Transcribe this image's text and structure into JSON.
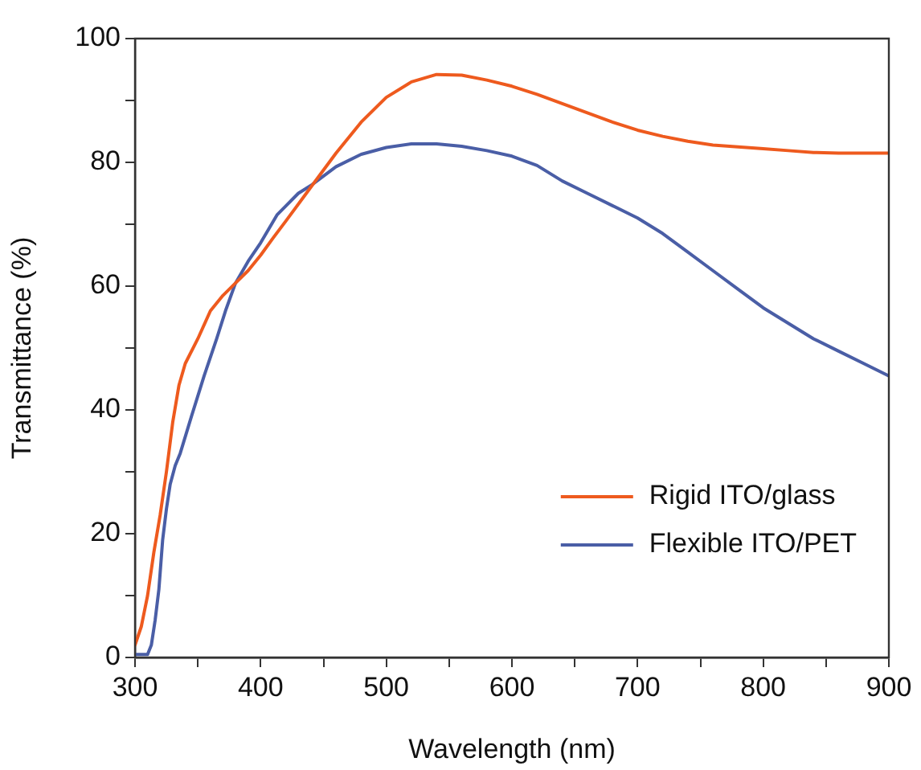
{
  "chart_data": {
    "type": "line",
    "xlabel": "Wavelength (nm)",
    "ylabel": "Transmittance (%)",
    "xlim": [
      300,
      900
    ],
    "ylim": [
      0,
      100
    ],
    "xticks": [
      300,
      {
        "value": 350,
        "label": null
      },
      400,
      {
        "value": 450,
        "label": null
      },
      500,
      {
        "value": 550,
        "label": null
      },
      600,
      {
        "value": 650,
        "label": null
      },
      700,
      {
        "value": 750,
        "label": null
      },
      800,
      {
        "value": 850,
        "label": null
      },
      900
    ],
    "yticks": [
      0,
      {
        "value": 10,
        "label": null
      },
      20,
      {
        "value": 30,
        "label": null
      },
      40,
      {
        "value": 50,
        "label": null
      },
      60,
      {
        "value": 70,
        "label": null
      },
      80,
      {
        "value": 90,
        "label": null
      },
      100
    ],
    "grid": false,
    "legend": "bottom right",
    "marker": "none",
    "line_style": "solid",
    "series": [
      {
        "name": "Rigid ITO/glass",
        "color": "#ee5a1e",
        "x": [
          300,
          305,
          310,
          315,
          320,
          325,
          330,
          335,
          340,
          350,
          360,
          370,
          380,
          390,
          400,
          410,
          420,
          440,
          460,
          480,
          500,
          520,
          540,
          560,
          580,
          600,
          620,
          640,
          660,
          680,
          700,
          720,
          740,
          760,
          780,
          800,
          820,
          840,
          860,
          880,
          900
        ],
        "values": [
          2,
          5,
          10,
          17,
          23,
          30,
          38,
          44,
          47.5,
          51.5,
          56,
          58.5,
          60.5,
          62.5,
          65,
          67.8,
          70.5,
          76,
          81.5,
          86.5,
          90.5,
          93,
          94.2,
          94.1,
          93.3,
          92.3,
          91,
          89.5,
          88,
          86.5,
          85.2,
          84.2,
          83.4,
          82.8,
          82.5,
          82.2,
          81.9,
          81.6,
          81.5,
          81.5,
          81.5
        ]
      },
      {
        "name": "Flexible ITO/PET",
        "color": "#4a5ea6",
        "x": [
          300,
          310,
          313,
          316,
          319,
          322,
          325,
          328,
          332,
          336,
          345,
          355,
          365,
          372,
          380,
          390,
          400,
          413,
          430,
          441,
          460,
          480,
          500,
          520,
          540,
          560,
          580,
          600,
          620,
          640,
          660,
          680,
          700,
          720,
          740,
          760,
          780,
          800,
          820,
          840,
          860,
          880,
          900
        ],
        "values": [
          0.5,
          0.5,
          2,
          6,
          11,
          19,
          24,
          28,
          31,
          33,
          39,
          45.5,
          51.5,
          56,
          60.5,
          64,
          67,
          71.5,
          75,
          76.4,
          79.3,
          81.3,
          82.4,
          83,
          83,
          82.6,
          81.9,
          81,
          79.5,
          77,
          75,
          73,
          71,
          68.5,
          65.5,
          62.5,
          59.5,
          56.5,
          54,
          51.5,
          49.5,
          47.5,
          45.5
        ]
      }
    ]
  }
}
